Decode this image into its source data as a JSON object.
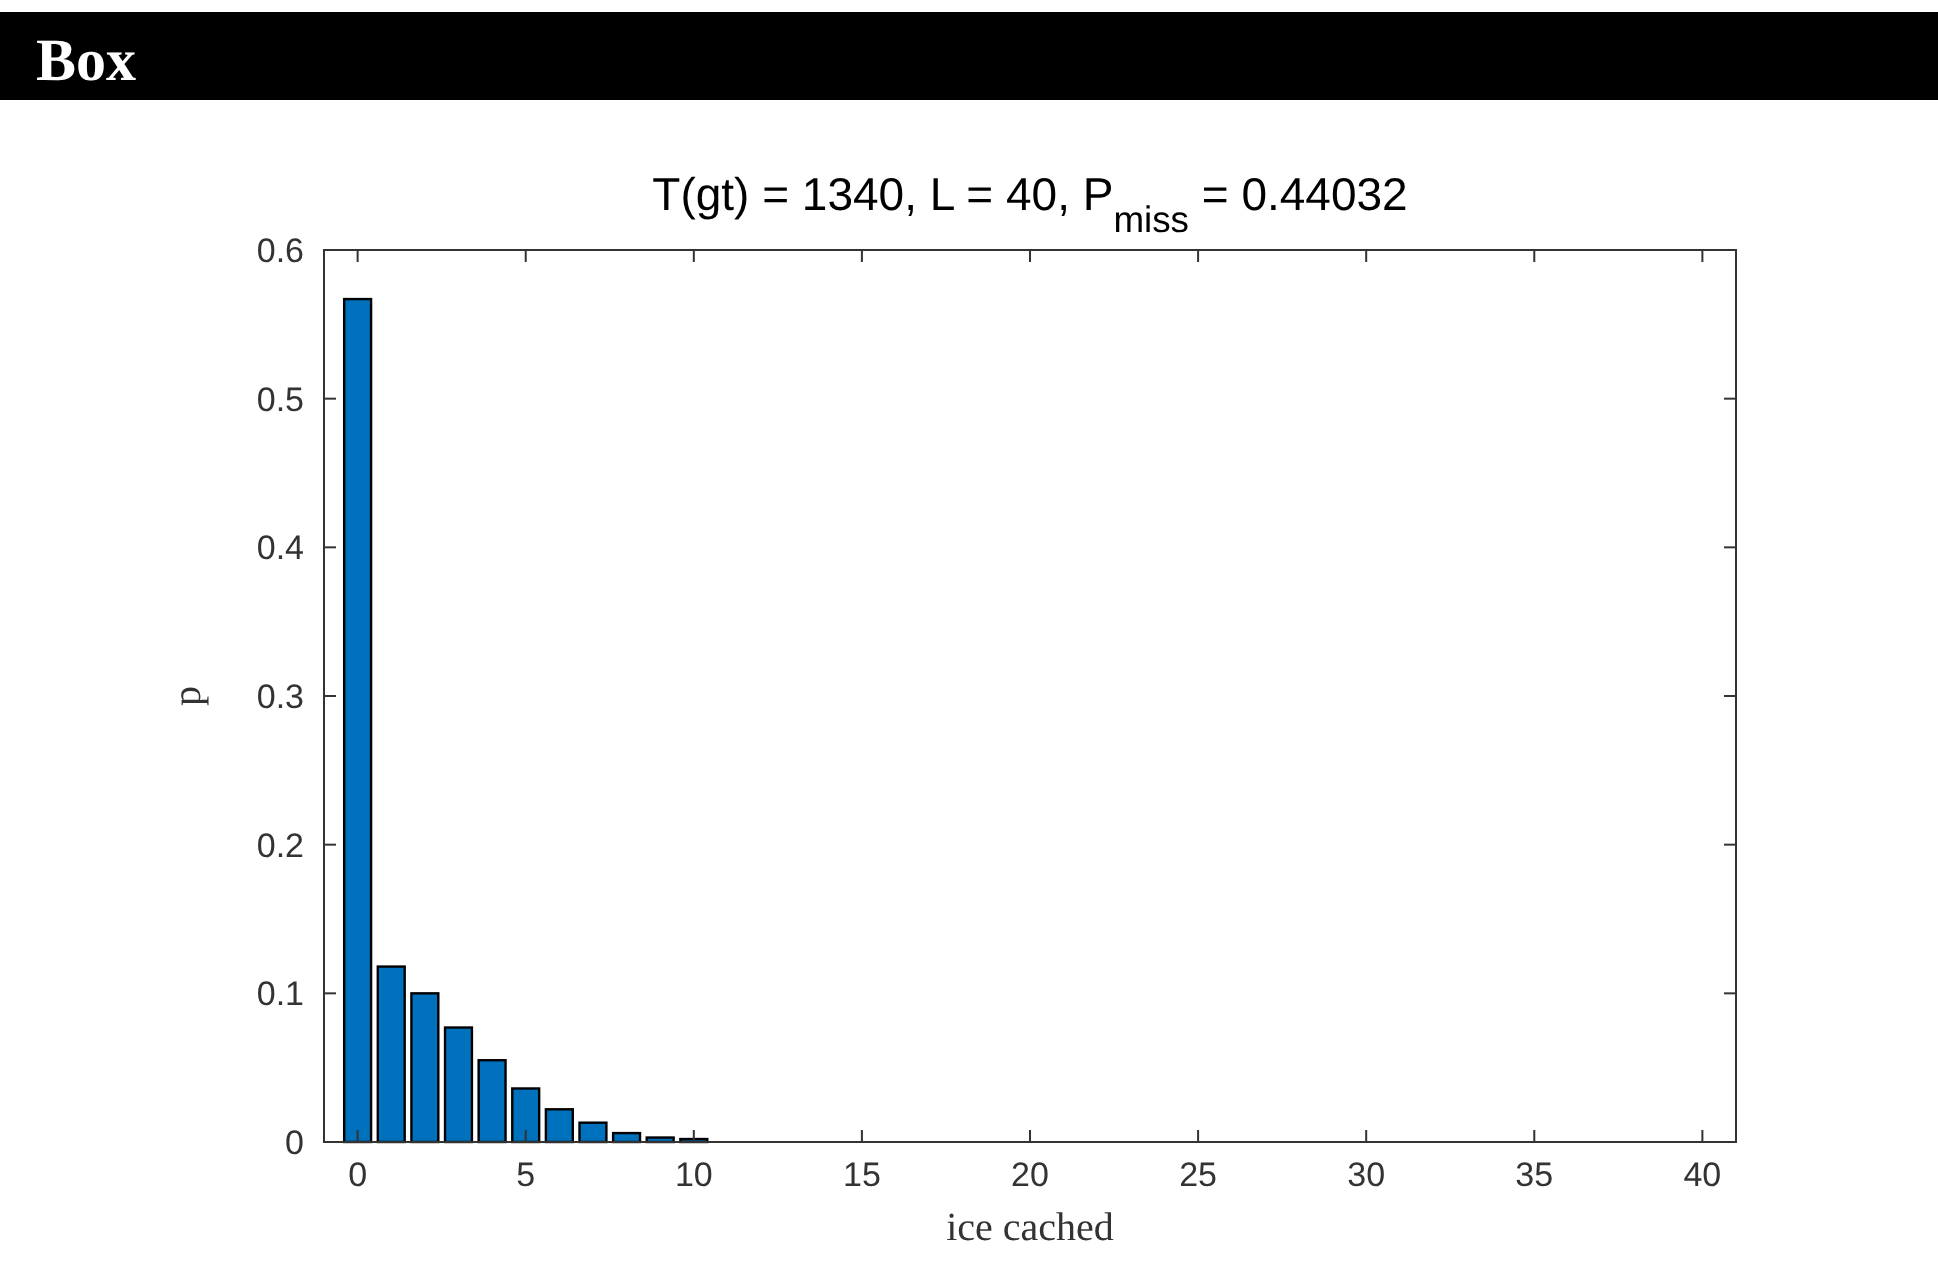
{
  "chart_data": {
    "type": "bar",
    "title": "T(gt) = 1340, L = 40, P$_{miss}$ = 0.44032",
    "xlabel": "ice cached",
    "ylabel": "p",
    "annotations": [
      "Box"
    ],
    "x": [
      0,
      1,
      2,
      3,
      4,
      5,
      6,
      7,
      8,
      9,
      10,
      11,
      12,
      13,
      14,
      15,
      16,
      17,
      18,
      19,
      20,
      21,
      22,
      23,
      24,
      25,
      26,
      27,
      28,
      29,
      30,
      31,
      32,
      33,
      34,
      35,
      36,
      37,
      38,
      39,
      40
    ],
    "values": [
      0.567,
      0.118,
      0.1,
      0.077,
      0.055,
      0.036,
      0.022,
      0.013,
      0.006,
      0.003,
      0.002,
      0,
      0,
      0,
      0,
      0,
      0,
      0,
      0,
      0,
      0,
      0,
      0,
      0,
      0,
      0,
      0,
      0,
      0,
      0,
      0,
      0,
      0,
      0,
      0,
      0,
      0,
      0,
      0,
      0,
      0
    ],
    "color": "#0072bd",
    "xlim": [
      -1,
      41
    ],
    "xticks": [
      0,
      5,
      10,
      15,
      20,
      25,
      30,
      35,
      40
    ],
    "ylim": [
      0,
      0.6
    ],
    "yticks": [
      0,
      0.1,
      0.2,
      0.3,
      0.4,
      0.5,
      0.6
    ],
    "grid": false
  }
}
